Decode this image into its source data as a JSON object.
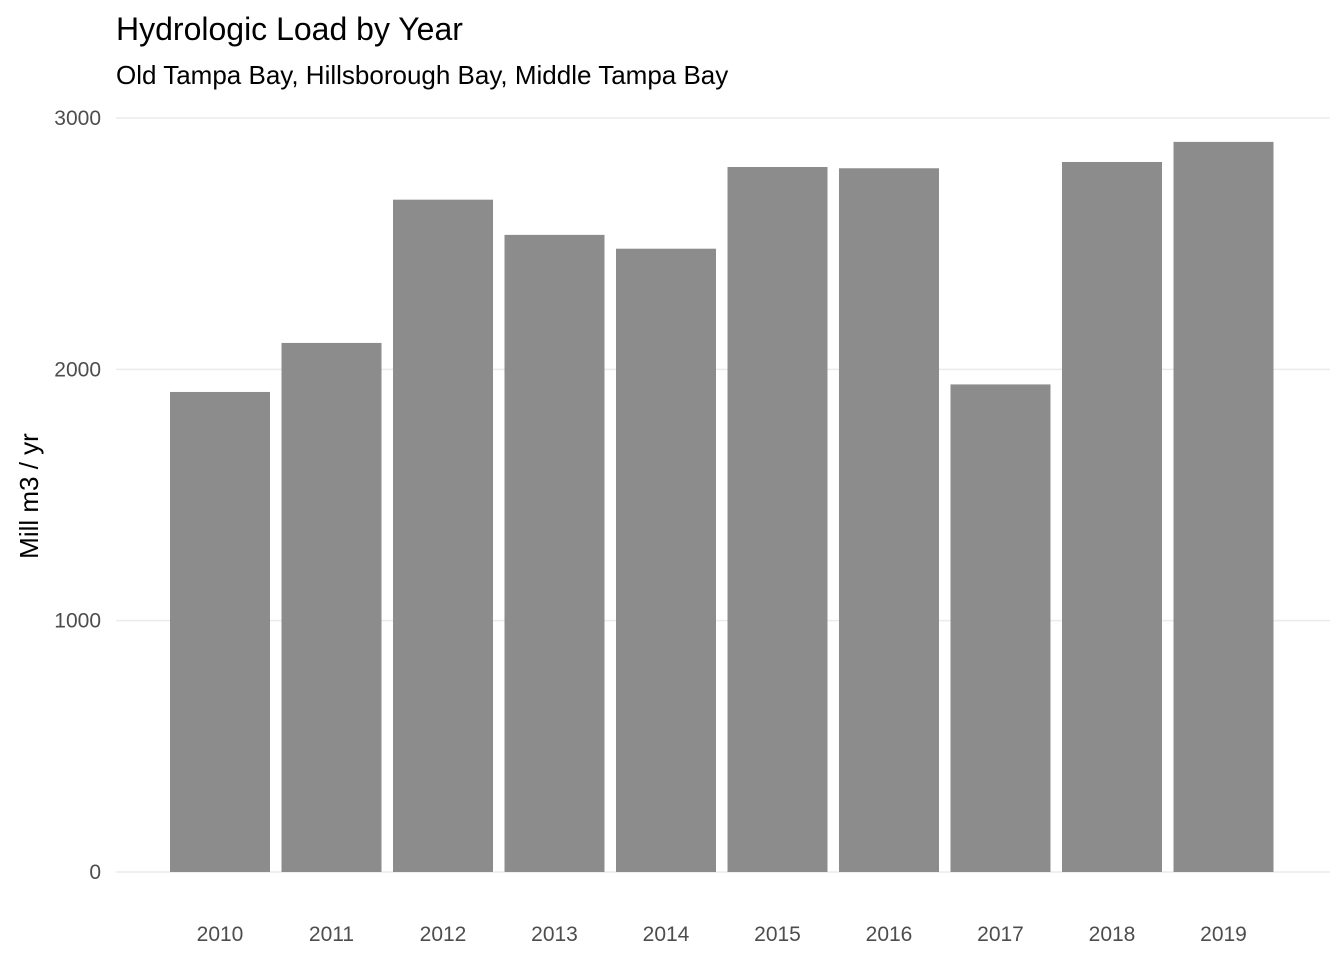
{
  "chart_data": {
    "type": "bar",
    "title": "Hydrologic Load by Year",
    "subtitle": "Old Tampa Bay, Hillsborough Bay, Middle Tampa Bay",
    "xlabel": "",
    "ylabel": "Mill m3 / yr",
    "categories": [
      "2010",
      "2011",
      "2012",
      "2013",
      "2014",
      "2015",
      "2016",
      "2017",
      "2018",
      "2019"
    ],
    "values": [
      1910,
      2105,
      2675,
      2535,
      2480,
      2805,
      2800,
      1940,
      2825,
      2905
    ],
    "ylim": [
      0,
      3000
    ],
    "yticks": [
      0,
      1000,
      2000,
      3000
    ],
    "grid": true,
    "legend": "none",
    "bar_color": "#8c8c8c",
    "grid_color": "#ebebeb"
  }
}
